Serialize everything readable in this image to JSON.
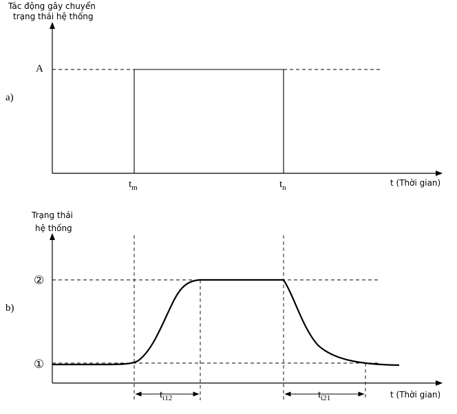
{
  "panel_a": {
    "label": "a)",
    "y_axis_title_line1": "Tác động gây chuyển",
    "y_axis_title_line2": "trạng thái hệ thống",
    "level_label": "A",
    "t_m_base": "t",
    "t_m_sub": "m",
    "t_n_base": "t",
    "t_n_sub": "n",
    "x_axis_label": "t (Thời gian)"
  },
  "panel_b": {
    "label": "b)",
    "y_axis_title_line1": "Trạng thái",
    "y_axis_title_line2": "hệ thống",
    "state_2_label": "②",
    "state_1_label": "①",
    "t_i12_base": "t",
    "t_i12_sub": "i12",
    "t_i21_base": "t",
    "t_i21_sub": "i21",
    "x_axis_label": "t (Thời gian)"
  }
}
